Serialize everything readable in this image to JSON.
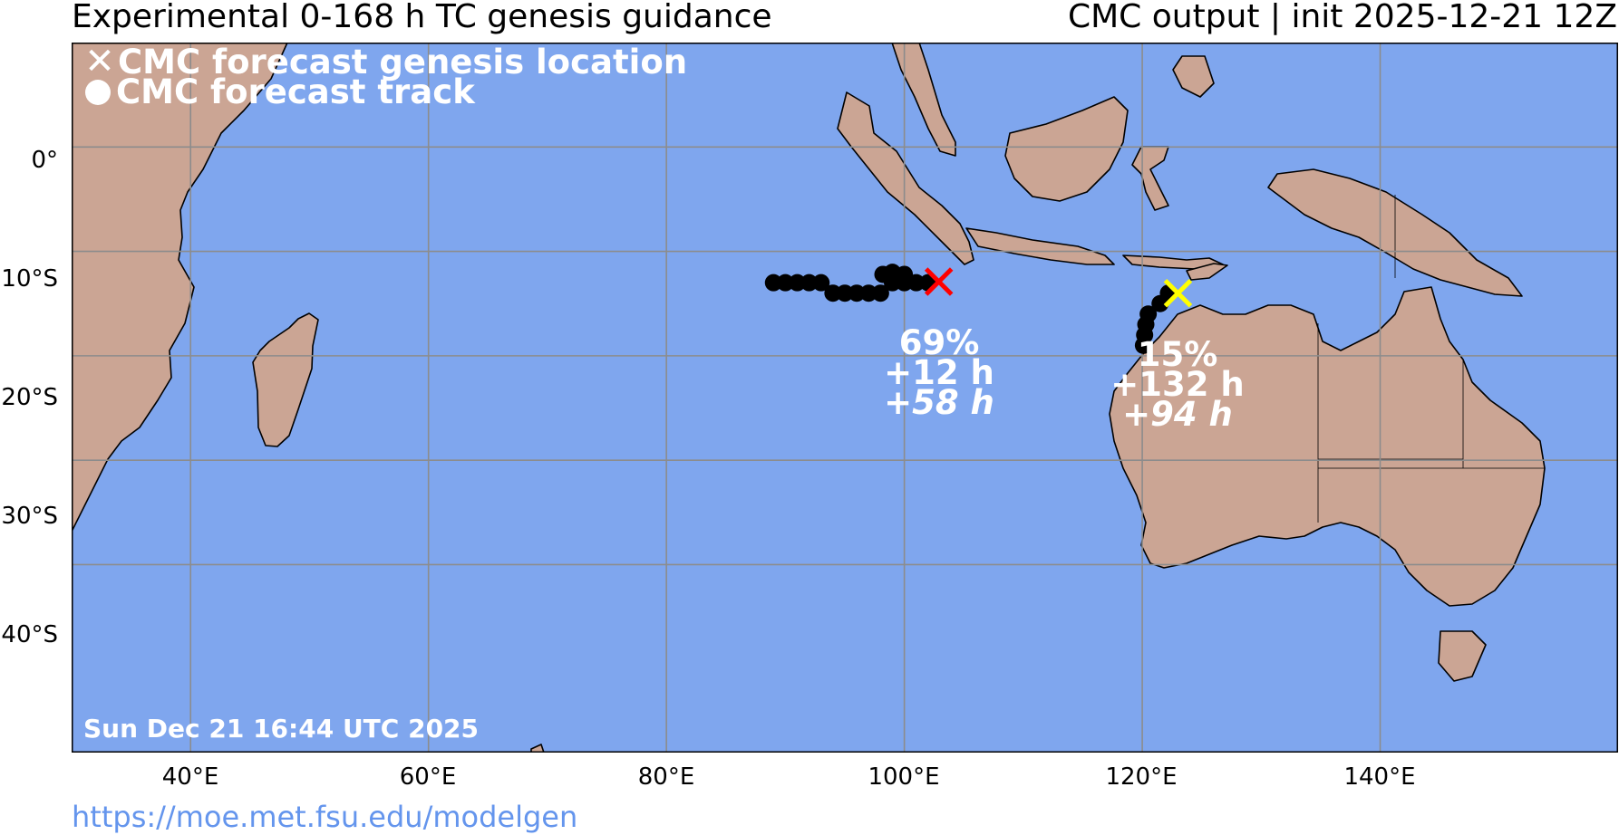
{
  "header": {
    "title": "Experimental 0-168 h TC genesis guidance",
    "subtitle": "CMC output | init 2025-12-21 12Z"
  },
  "footer": {
    "url": "https://moe.met.fsu.edu/modelgen"
  },
  "legend": {
    "genesis_label": "CMC forecast genesis location",
    "track_label": "CMC forecast track",
    "genesis_symbol": "✕"
  },
  "timestamp": "Sun Dec 21 16:44 UTC 2025",
  "axes": {
    "lat_labels": [
      "0°",
      "10°S",
      "20°S",
      "30°S",
      "40°S"
    ],
    "lon_labels": [
      "40°E",
      "60°E",
      "80°E",
      "100°E",
      "120°E",
      "140°E"
    ]
  },
  "colors": {
    "ocean": "#7fa6ee",
    "land": "#cba594",
    "grid": "#8c8c8c",
    "genesis_1": "#ff0000",
    "genesis_2": "#ffff00",
    "track": "#000000"
  },
  "systems": [
    {
      "probability": "69%",
      "genesis_time": "+12 h",
      "duration": "+58 h",
      "genesis_lon": 102.9,
      "genesis_lat": -12.9,
      "color": "red",
      "track": [
        [
          89.0,
          -13.0
        ],
        [
          90.0,
          -13.0
        ],
        [
          91.0,
          -13.0
        ],
        [
          92.0,
          -13.0
        ],
        [
          93.0,
          -13.0
        ],
        [
          94.0,
          -14.0
        ],
        [
          95.0,
          -14.0
        ],
        [
          96.0,
          -14.0
        ],
        [
          97.0,
          -14.0
        ],
        [
          98.0,
          -14.0
        ],
        [
          98.2,
          -12.2
        ],
        [
          99.0,
          -12.0
        ],
        [
          100.0,
          -12.2
        ],
        [
          99.0,
          -13.0
        ],
        [
          100.0,
          -13.0
        ],
        [
          101.0,
          -13.0
        ],
        [
          102.0,
          -13.0
        ]
      ]
    },
    {
      "probability": "15%",
      "genesis_time": "+132 h",
      "duration": "+94 h",
      "genesis_lon": 123.0,
      "genesis_lat": -14.0,
      "color": "yellow",
      "track": [
        [
          122.2,
          -14.0
        ],
        [
          121.5,
          -15.0
        ],
        [
          120.5,
          -16.0
        ],
        [
          120.3,
          -17.0
        ],
        [
          120.2,
          -18.0
        ],
        [
          120.1,
          -19.0
        ]
      ]
    }
  ]
}
